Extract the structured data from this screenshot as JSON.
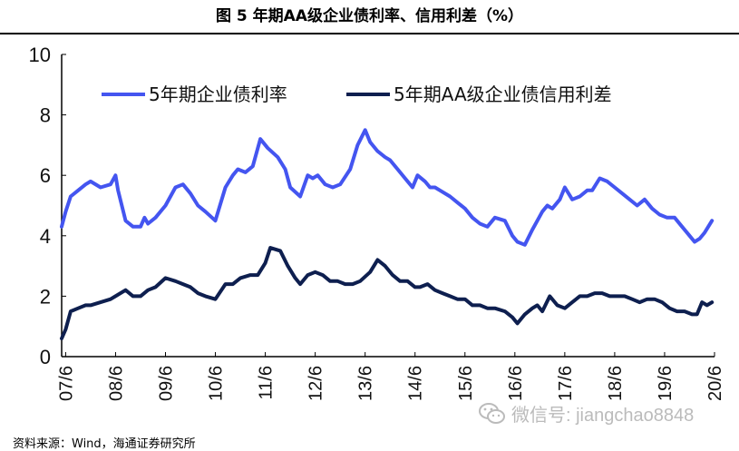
{
  "title": "图 5 年期AA级企业债利率、信用利差（%）",
  "source": "资料来源：Wind，海通证券研究所",
  "watermark": {
    "text": "微信号: jiangchao8848",
    "icon": "wechat-icon"
  },
  "colors": {
    "rate": "#4455f0",
    "spread": "#0e1f4f",
    "axis": "#000000",
    "watermark": "#bbbbbb"
  },
  "chart_data": {
    "type": "line",
    "ylim": [
      0,
      10
    ],
    "yticks": [
      0,
      2,
      4,
      6,
      8,
      10
    ],
    "xlim": [
      2007.42,
      2020.5
    ],
    "xticks": [
      {
        "x": 2007.5,
        "label": "07/6"
      },
      {
        "x": 2008.5,
        "label": "08/6"
      },
      {
        "x": 2009.5,
        "label": "09/6"
      },
      {
        "x": 2010.5,
        "label": "10/6"
      },
      {
        "x": 2011.5,
        "label": "11/6"
      },
      {
        "x": 2012.5,
        "label": "12/6"
      },
      {
        "x": 2013.5,
        "label": "13/6"
      },
      {
        "x": 2014.5,
        "label": "14/6"
      },
      {
        "x": 2015.5,
        "label": "15/6"
      },
      {
        "x": 2016.5,
        "label": "16/6"
      },
      {
        "x": 2017.5,
        "label": "17/6"
      },
      {
        "x": 2018.5,
        "label": "18/6"
      },
      {
        "x": 2019.5,
        "label": "19/6"
      },
      {
        "x": 2020.5,
        "label": "20/6"
      }
    ],
    "legend_position": "top",
    "grid": false,
    "series": [
      {
        "name": "5年期企业债利率",
        "x": [
          2007.42,
          2007.5,
          2007.6,
          2007.75,
          2007.9,
          2008.0,
          2008.2,
          2008.4,
          2008.5,
          2008.55,
          2008.7,
          2008.85,
          2009.0,
          2009.08,
          2009.15,
          2009.3,
          2009.5,
          2009.7,
          2009.85,
          2010.0,
          2010.15,
          2010.3,
          2010.5,
          2010.7,
          2010.85,
          2010.95,
          2011.1,
          2011.25,
          2011.4,
          2011.55,
          2011.75,
          2011.9,
          2012.0,
          2012.2,
          2012.35,
          2012.45,
          2012.55,
          2012.7,
          2012.85,
          2013.0,
          2013.2,
          2013.35,
          2013.5,
          2013.6,
          2013.75,
          2013.9,
          2014.0,
          2014.15,
          2014.3,
          2014.45,
          2014.55,
          2014.7,
          2014.8,
          2014.9,
          2015.0,
          2015.2,
          2015.35,
          2015.5,
          2015.65,
          2015.8,
          2015.95,
          2016.1,
          2016.3,
          2016.45,
          2016.55,
          2016.7,
          2016.85,
          2016.95,
          2017.05,
          2017.15,
          2017.25,
          2017.4,
          2017.5,
          2017.65,
          2017.8,
          2017.95,
          2018.05,
          2018.2,
          2018.35,
          2018.5,
          2018.65,
          2018.8,
          2018.95,
          2019.1,
          2019.25,
          2019.4,
          2019.55,
          2019.7,
          2019.85,
          2020.0,
          2020.1,
          2020.2,
          2020.3,
          2020.45
        ],
        "y": [
          4.3,
          4.8,
          5.3,
          5.5,
          5.7,
          5.8,
          5.6,
          5.7,
          6.0,
          5.5,
          4.5,
          4.3,
          4.3,
          4.6,
          4.4,
          4.6,
          5.0,
          5.6,
          5.7,
          5.4,
          5.0,
          4.8,
          4.5,
          5.6,
          6.0,
          6.2,
          6.1,
          6.3,
          7.2,
          6.9,
          6.6,
          6.2,
          5.6,
          5.3,
          6.0,
          5.9,
          6.0,
          5.7,
          5.6,
          5.7,
          6.2,
          7.0,
          7.5,
          7.1,
          6.8,
          6.6,
          6.5,
          6.2,
          5.9,
          5.6,
          6.0,
          5.8,
          5.6,
          5.6,
          5.5,
          5.3,
          5.1,
          4.9,
          4.6,
          4.4,
          4.3,
          4.6,
          4.5,
          4.0,
          3.8,
          3.7,
          4.2,
          4.5,
          4.8,
          5.0,
          4.9,
          5.2,
          5.6,
          5.2,
          5.3,
          5.5,
          5.5,
          5.9,
          5.8,
          5.6,
          5.4,
          5.2,
          5.0,
          5.2,
          4.9,
          4.7,
          4.6,
          4.6,
          4.3,
          4.0,
          3.8,
          3.9,
          4.1,
          4.5
        ]
      },
      {
        "name": "5年期AA级企业债信用利差",
        "x": [
          2007.42,
          2007.5,
          2007.6,
          2007.75,
          2007.9,
          2008.0,
          2008.2,
          2008.4,
          2008.5,
          2008.7,
          2008.85,
          2009.0,
          2009.15,
          2009.3,
          2009.5,
          2009.7,
          2009.85,
          2010.0,
          2010.15,
          2010.3,
          2010.5,
          2010.7,
          2010.85,
          2011.0,
          2011.2,
          2011.35,
          2011.5,
          2011.6,
          2011.8,
          2011.95,
          2012.1,
          2012.2,
          2012.35,
          2012.5,
          2012.65,
          2012.8,
          2012.95,
          2013.1,
          2013.25,
          2013.4,
          2013.6,
          2013.75,
          2013.9,
          2014.05,
          2014.2,
          2014.35,
          2014.5,
          2014.6,
          2014.75,
          2014.9,
          2015.05,
          2015.2,
          2015.35,
          2015.5,
          2015.65,
          2015.8,
          2015.95,
          2016.1,
          2016.3,
          2016.45,
          2016.55,
          2016.7,
          2016.85,
          2016.95,
          2017.05,
          2017.2,
          2017.35,
          2017.5,
          2017.65,
          2017.8,
          2017.95,
          2018.1,
          2018.25,
          2018.4,
          2018.55,
          2018.7,
          2018.85,
          2019.0,
          2019.15,
          2019.3,
          2019.45,
          2019.6,
          2019.75,
          2019.9,
          2020.05,
          2020.15,
          2020.25,
          2020.35,
          2020.45
        ],
        "y": [
          0.6,
          0.9,
          1.5,
          1.6,
          1.7,
          1.7,
          1.8,
          1.9,
          2.0,
          2.2,
          2.0,
          2.0,
          2.2,
          2.3,
          2.6,
          2.5,
          2.4,
          2.3,
          2.1,
          2.0,
          1.9,
          2.4,
          2.4,
          2.6,
          2.7,
          2.7,
          3.1,
          3.6,
          3.5,
          3.0,
          2.6,
          2.4,
          2.7,
          2.8,
          2.7,
          2.5,
          2.5,
          2.4,
          2.4,
          2.5,
          2.8,
          3.2,
          3.0,
          2.7,
          2.5,
          2.5,
          2.3,
          2.3,
          2.4,
          2.2,
          2.1,
          2.0,
          1.9,
          1.9,
          1.7,
          1.7,
          1.6,
          1.6,
          1.5,
          1.3,
          1.1,
          1.4,
          1.6,
          1.7,
          1.5,
          2.0,
          1.7,
          1.6,
          1.8,
          2.0,
          2.0,
          2.1,
          2.1,
          2.0,
          2.0,
          2.0,
          1.9,
          1.8,
          1.9,
          1.9,
          1.8,
          1.6,
          1.5,
          1.5,
          1.4,
          1.4,
          1.8,
          1.7,
          1.8
        ]
      }
    ]
  }
}
